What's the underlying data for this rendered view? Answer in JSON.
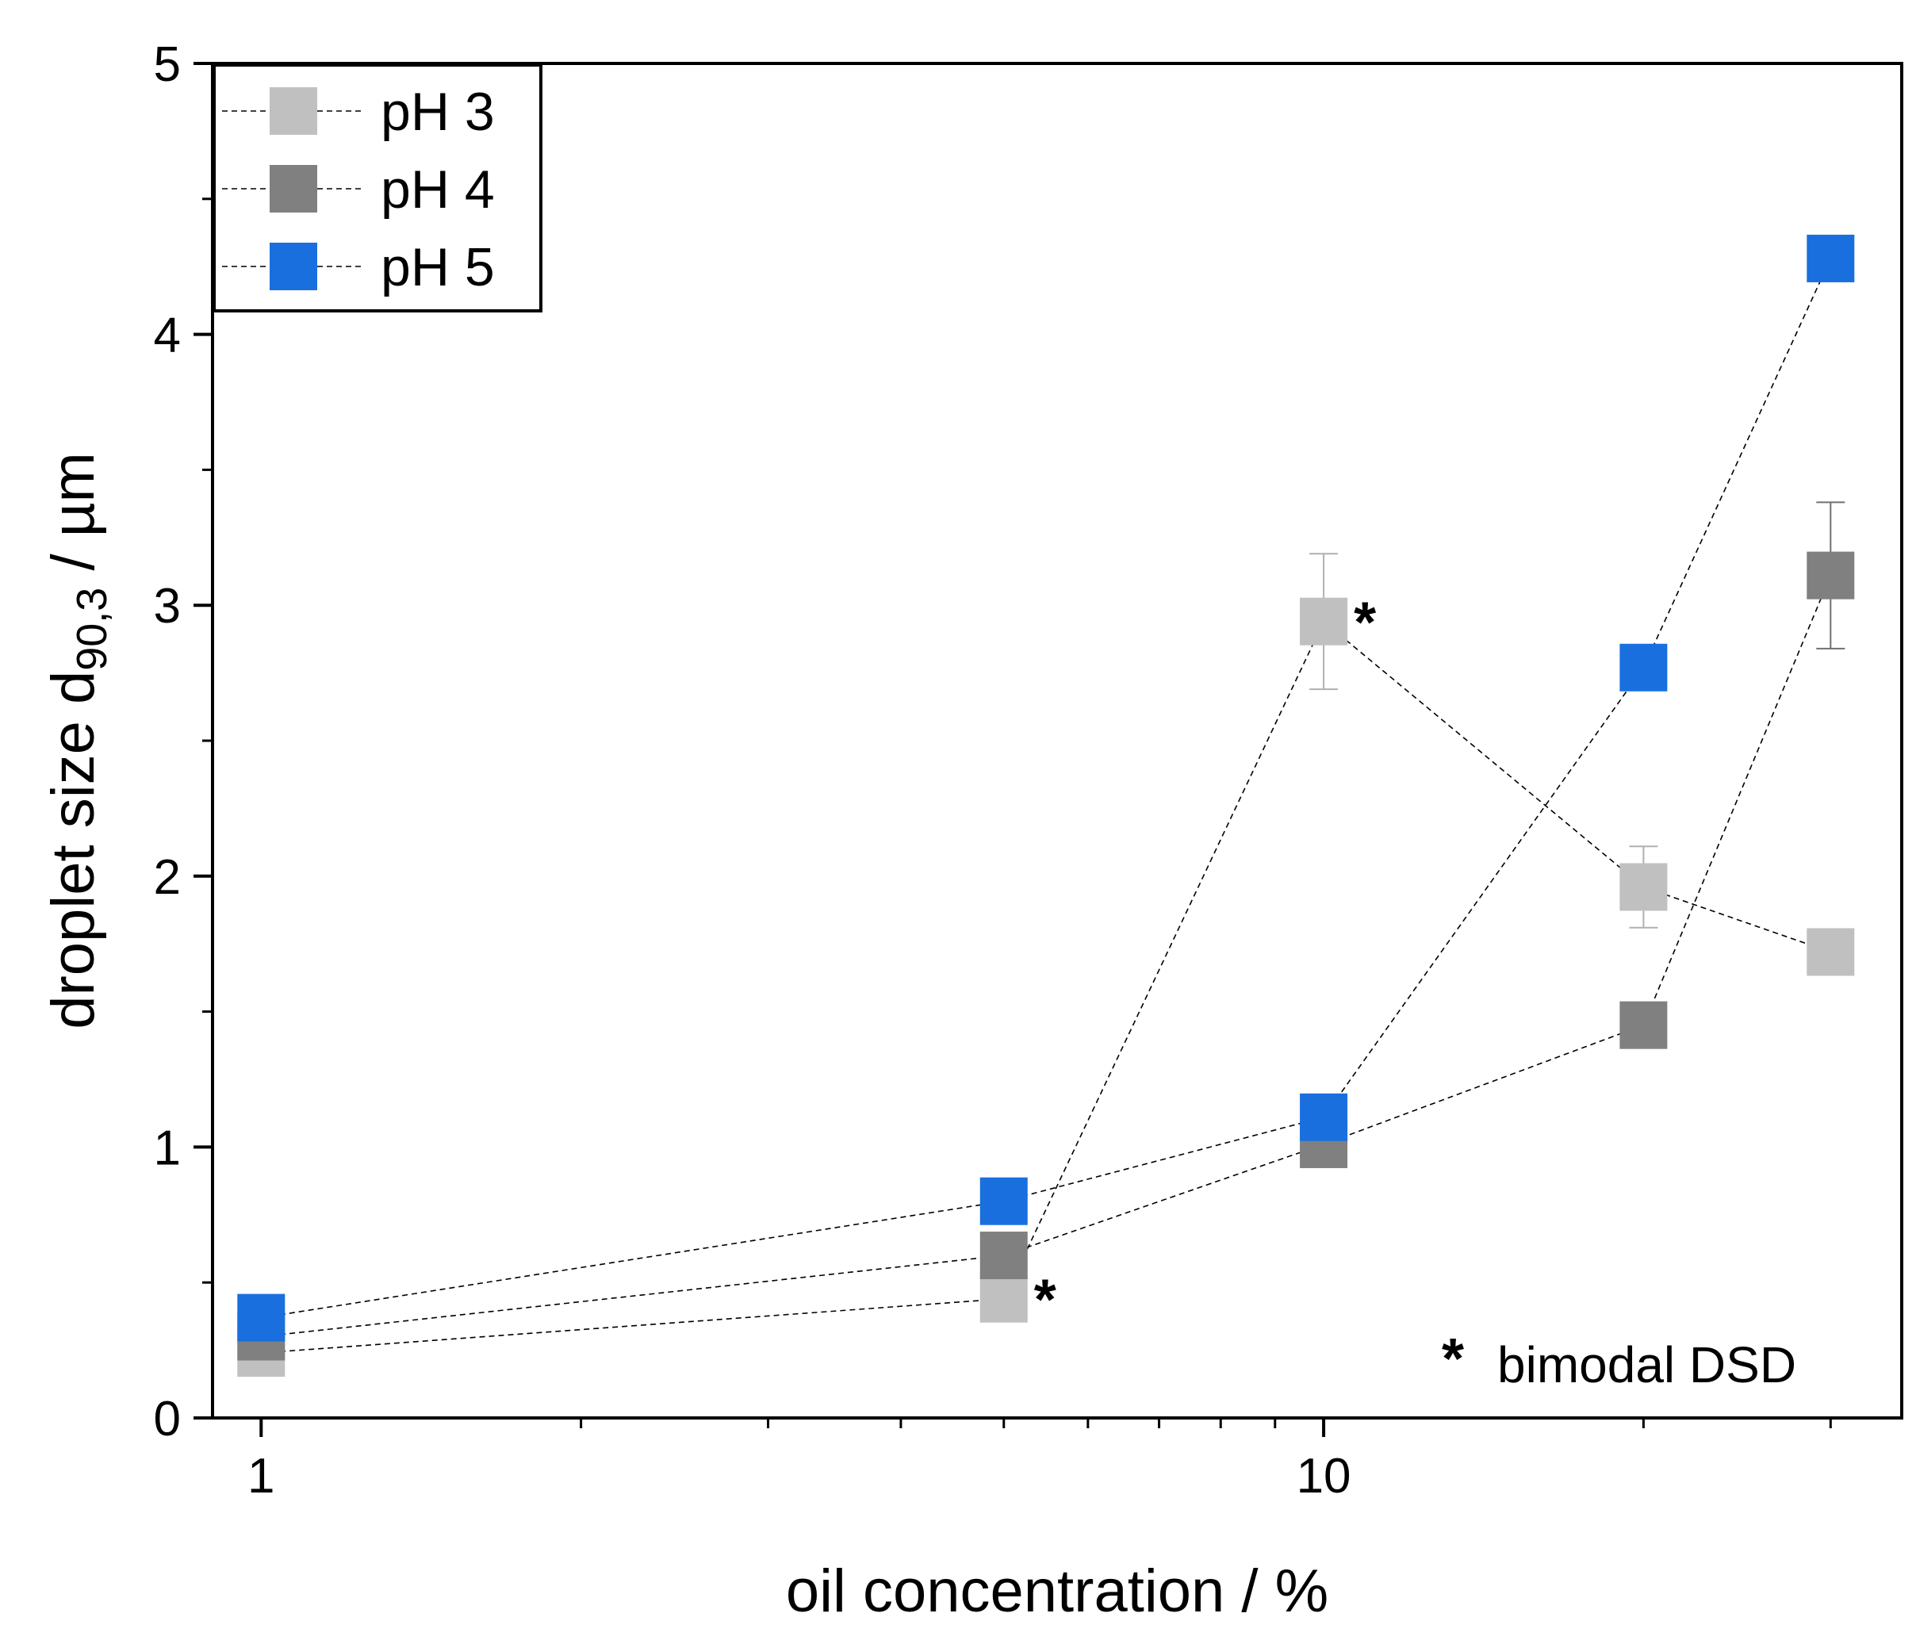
{
  "chart_data": {
    "type": "scatter",
    "xscale": "log",
    "xlabel": "oil concentration / %",
    "ylabel": {
      "main": "droplet size d",
      "subscript": "90,3",
      "unit": " / µm"
    },
    "xlim": [
      0.9,
      35
    ],
    "ylim": [
      0,
      5
    ],
    "xticks": [
      {
        "value": 1,
        "label": "1"
      },
      {
        "value": 10,
        "label": "10"
      }
    ],
    "xminor": [
      2,
      3,
      4,
      5,
      6,
      7,
      8,
      9,
      20,
      30
    ],
    "yticks": [
      {
        "value": 0,
        "label": "0"
      },
      {
        "value": 1,
        "label": "1"
      },
      {
        "value": 2,
        "label": "2"
      },
      {
        "value": 3,
        "label": "3"
      },
      {
        "value": 4,
        "label": "4"
      },
      {
        "value": 5,
        "label": "5"
      }
    ],
    "yminor": [
      0.5,
      1.5,
      2.5,
      3.5,
      4.5
    ],
    "legend_position": "top-left",
    "series": [
      {
        "name": "pH 3",
        "color": "#c0c0c0",
        "points": [
          {
            "x": 1,
            "y": 0.24
          },
          {
            "x": 5,
            "y": 0.44,
            "bimodal": true
          },
          {
            "x": 10,
            "y": 2.94,
            "err": 0.25,
            "bimodal": true
          },
          {
            "x": 20,
            "y": 1.96,
            "err": 0.15
          },
          {
            "x": 30,
            "y": 1.72
          }
        ]
      },
      {
        "name": "pH 4",
        "color": "#808080",
        "points": [
          {
            "x": 1,
            "y": 0.3
          },
          {
            "x": 5,
            "y": 0.6
          },
          {
            "x": 10,
            "y": 1.01
          },
          {
            "x": 20,
            "y": 1.45
          },
          {
            "x": 30,
            "y": 3.11,
            "err": 0.27
          }
        ]
      },
      {
        "name": "pH 5",
        "color": "#1a6fdf",
        "points": [
          {
            "x": 1,
            "y": 0.37
          },
          {
            "x": 5,
            "y": 0.8
          },
          {
            "x": 10,
            "y": 1.11
          },
          {
            "x": 20,
            "y": 2.77
          },
          {
            "x": 30,
            "y": 4.28
          }
        ]
      }
    ],
    "annotation": {
      "symbol": "*",
      "text": "bimodal DSD"
    }
  }
}
